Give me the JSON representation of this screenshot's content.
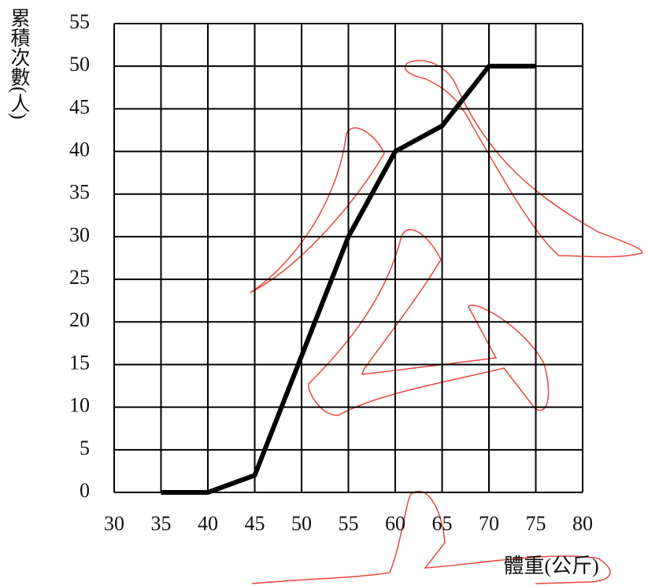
{
  "chart_data": {
    "type": "line",
    "x_label": "體重(公斤)",
    "y_label": "累積次數(人)",
    "x": [
      35,
      40,
      45,
      50,
      55,
      60,
      65,
      70,
      75
    ],
    "values": [
      0,
      0,
      2,
      16,
      30,
      40,
      43,
      50,
      50
    ],
    "color": "#000000",
    "xlim": [
      30,
      80
    ],
    "xticks": [
      30,
      35,
      40,
      45,
      50,
      55,
      60,
      65,
      70,
      75,
      80
    ],
    "ylim": [
      0,
      55
    ],
    "yticks": [
      0,
      5,
      10,
      15,
      20,
      25,
      30,
      35,
      40,
      45,
      50,
      55
    ],
    "grid": true
  }
}
